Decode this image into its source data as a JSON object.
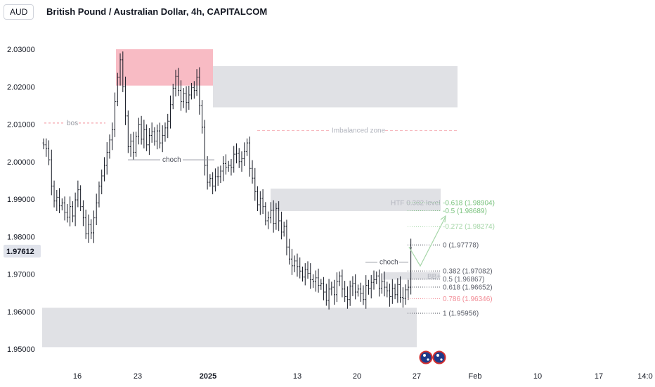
{
  "header": {
    "currency": "AUD",
    "title": "British Pound / Australian Dollar, 4h, CAPITALCOM"
  },
  "colors": {
    "bar": "#131722",
    "supply_zone": "#f8bbc4",
    "gray_zone": "#e0e1e5",
    "fib_green": "#79c27d",
    "fib_light_green": "#a5d6a7",
    "fib_red": "#f28b95",
    "fib_gray": "#5d606b",
    "annotation": "#9598a1",
    "price_label_bg": "#e0e3eb"
  },
  "chart_data": {
    "type": "ohlc",
    "symbol": "GBPAUD",
    "timeframe": "4h",
    "ylim": [
      1.9475,
      2.0335
    ],
    "y_ticks": [
      "2.03000",
      "2.02000",
      "2.01000",
      "2.00000",
      "1.99000",
      "1.98000",
      "1.97000",
      "1.96000",
      "1.95000"
    ],
    "x_ticks": [
      "16",
      "23",
      "2025",
      "13",
      "20",
      "27",
      "Feb",
      "10",
      "17",
      "14:0"
    ],
    "last_price": "1.97612",
    "close_path": [
      2.0045,
      2.0035,
      2.0005,
      1.9935,
      1.9895,
      1.9905,
      1.9882,
      1.989,
      1.9865,
      1.9852,
      1.988,
      1.9855,
      1.9898,
      1.9925,
      1.988,
      1.985,
      1.9808,
      1.9832,
      1.981,
      1.985,
      1.989,
      1.9935,
      1.9962,
      1.999,
      2.0025,
      2.0058,
      2.0085,
      2.016,
      2.0225,
      2.0272,
      2.02,
      2.0122,
      2.004,
      2.0055,
      2.0025,
      2.0068,
      2.01,
      2.006,
      2.0085,
      2.0045,
      2.007,
      2.008,
      2.0055,
      2.0082,
      2.005,
      2.007,
      2.009,
      2.0108,
      2.0152,
      2.0196,
      2.0228,
      2.019,
      2.016,
      2.0182,
      2.0158,
      2.0178,
      2.0198,
      2.019,
      2.0225,
      2.015,
      2.0092,
      1.999,
      1.9945,
      1.9955,
      1.9935,
      1.996,
      1.996,
      1.9975,
      1.9995,
      1.9985,
      1.999,
      1.9985,
      2.002,
      2.0022,
      2.0,
      2.0008,
      2.0027,
      2.005,
      1.9982,
      1.9956,
      1.992,
      1.9885,
      1.9902,
      1.988,
      1.9842,
      1.985,
      1.987,
      1.9835,
      1.9875,
      1.9842,
      1.9812,
      1.9828,
      1.9772,
      1.974,
      1.9722,
      1.9735,
      1.972,
      1.9708,
      1.9692,
      1.9712,
      1.9702,
      1.9685,
      1.968,
      1.969,
      1.967,
      1.9675,
      1.9652,
      1.963,
      1.966,
      1.9665,
      1.9645,
      1.968,
      1.9695,
      1.966,
      1.964,
      1.9632,
      1.9668,
      1.9675,
      1.9652,
      1.966,
      1.9648,
      1.9632,
      1.967,
      1.9662,
      1.9678,
      1.9685,
      1.9695,
      1.9662,
      1.968,
      1.9665,
      1.9655,
      1.964,
      1.9662,
      1.9645,
      1.9672,
      1.9638,
      1.9635,
      1.9658,
      1.9665,
      1.977
    ],
    "annotations": {
      "supply_zone": "supply",
      "zones": [
        "2.0145–2.0255",
        "1.9868–1.9928",
        "1.9685–1.9705",
        "1.9505–1.9610"
      ],
      "bos": {
        "label": "bos",
        "price": 2.0103
      },
      "choch_1": {
        "label": "choch",
        "price": 2.0005
      },
      "imbalanced_zone": {
        "label": "Imbalanced zone",
        "price": 2.0083
      },
      "htf_level": {
        "label": "HTF 0.382 level",
        "price": 1.989
      },
      "choch_2": {
        "label": "choch",
        "price": 1.9732
      },
      "bb_label": {
        "label": "BB+",
        "price": 1.9693
      }
    },
    "fib_levels": [
      {
        "label": "-0.618 (1.98904)",
        "value": 1.98904,
        "color": "#79c27d"
      },
      {
        "label": "-0.5 (1.98689)",
        "value": 1.98689,
        "color": "#79c27d"
      },
      {
        "label": "-0.272 (1.98274)",
        "value": 1.98274,
        "color": "#a5d6a7"
      },
      {
        "label": "0 (1.97778)",
        "value": 1.97778,
        "color": "#5d606b"
      },
      {
        "label": "0.382 (1.97082)",
        "value": 1.97082,
        "color": "#5d606b"
      },
      {
        "label": "0.5 (1.96867)",
        "value": 1.96867,
        "color": "#5d606b"
      },
      {
        "label": "0.618 (1.96652)",
        "value": 1.96652,
        "color": "#5d606b"
      },
      {
        "label": "0.786 (1.96346)",
        "value": 1.96346,
        "color": "#f28b95"
      },
      {
        "label": "1 (1.95956)",
        "value": 1.95956,
        "color": "#5d606b"
      }
    ]
  }
}
